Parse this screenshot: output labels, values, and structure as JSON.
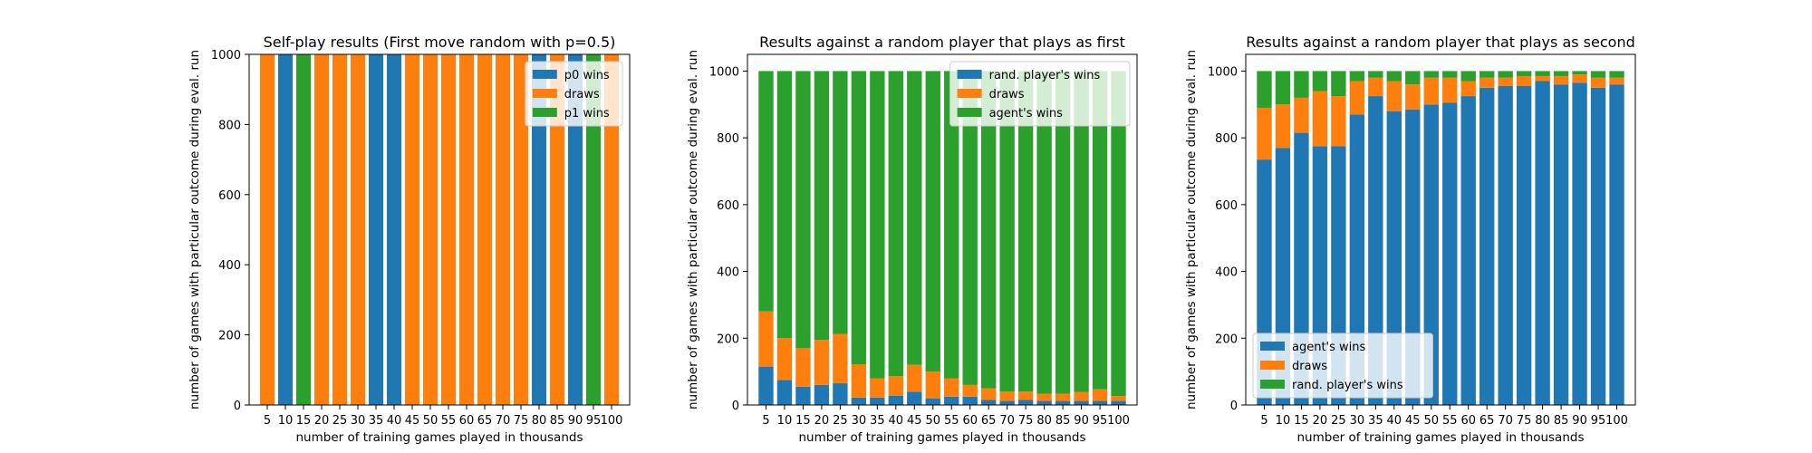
{
  "chart_data": [
    {
      "type": "bar",
      "stacked": true,
      "title": "Self-play results (First move random with p=0.5)",
      "xlabel": "number of training games played in thousands",
      "ylabel": "number of games with particular outcome during eval. run",
      "categories": [
        "5",
        "10",
        "15",
        "20",
        "25",
        "30",
        "35",
        "40",
        "45",
        "50",
        "55",
        "60",
        "65",
        "70",
        "75",
        "80",
        "85",
        "90",
        "95",
        "100"
      ],
      "ylim": [
        0,
        1000
      ],
      "yticks": [
        0,
        200,
        400,
        600,
        800,
        1000
      ],
      "legend_position": "upper right",
      "series": [
        {
          "name": "p0 wins",
          "color": "#1f77b4",
          "values": [
            0,
            1000,
            0,
            0,
            0,
            0,
            1000,
            1000,
            0,
            0,
            0,
            0,
            0,
            0,
            0,
            1000,
            0,
            1000,
            0,
            0
          ]
        },
        {
          "name": "draws",
          "color": "#ff7f0e",
          "values": [
            1000,
            0,
            0,
            1000,
            1000,
            1000,
            0,
            0,
            1000,
            1000,
            1000,
            1000,
            1000,
            1000,
            1000,
            0,
            1000,
            0,
            0,
            1000
          ]
        },
        {
          "name": "p1 wins",
          "color": "#2ca02c",
          "values": [
            0,
            0,
            1000,
            0,
            0,
            0,
            0,
            0,
            0,
            0,
            0,
            0,
            0,
            0,
            0,
            0,
            0,
            0,
            1000,
            0
          ]
        }
      ]
    },
    {
      "type": "bar",
      "stacked": true,
      "title": "Results against a random player that plays as first",
      "xlabel": "number of training games played in thousands",
      "ylabel": "number of games with particular outcome during eval. run",
      "categories": [
        "5",
        "10",
        "15",
        "20",
        "25",
        "30",
        "35",
        "40",
        "45",
        "50",
        "55",
        "60",
        "65",
        "70",
        "75",
        "80",
        "85",
        "90",
        "95",
        "100"
      ],
      "ylim": [
        0,
        1050
      ],
      "yticks": [
        0,
        200,
        400,
        600,
        800,
        1000
      ],
      "legend_position": "upper right",
      "series": [
        {
          "name": "rand. player's wins",
          "color": "#1f77b4",
          "values": [
            115,
            75,
            55,
            60,
            65,
            22,
            22,
            28,
            40,
            20,
            25,
            25,
            15,
            12,
            15,
            12,
            12,
            12,
            12,
            12
          ]
        },
        {
          "name": "draws",
          "color": "#ff7f0e",
          "values": [
            165,
            125,
            115,
            135,
            148,
            100,
            58,
            58,
            80,
            80,
            55,
            35,
            35,
            28,
            25,
            22,
            22,
            27,
            35,
            15
          ]
        },
        {
          "name": "agent's wins",
          "color": "#2ca02c",
          "values": [
            720,
            800,
            830,
            805,
            787,
            878,
            920,
            914,
            880,
            900,
            920,
            940,
            950,
            960,
            960,
            966,
            966,
            961,
            953,
            973
          ]
        }
      ]
    },
    {
      "type": "bar",
      "stacked": true,
      "title": "Results against a random player that plays as second",
      "xlabel": "number of training games played in thousands",
      "ylabel": "number of games with particular outcome during eval. run",
      "categories": [
        "5",
        "10",
        "15",
        "20",
        "25",
        "30",
        "35",
        "40",
        "45",
        "50",
        "55",
        "60",
        "65",
        "70",
        "75",
        "80",
        "85",
        "90",
        "95",
        "100"
      ],
      "ylim": [
        0,
        1050
      ],
      "yticks": [
        0,
        200,
        400,
        600,
        800,
        1000
      ],
      "legend_position": "lower left",
      "series": [
        {
          "name": "agent's wins",
          "color": "#1f77b4",
          "values": [
            735,
            770,
            815,
            775,
            775,
            870,
            925,
            880,
            885,
            900,
            905,
            925,
            950,
            955,
            955,
            970,
            960,
            965,
            950,
            960
          ]
        },
        {
          "name": "draws",
          "color": "#ff7f0e",
          "values": [
            155,
            130,
            105,
            165,
            150,
            100,
            55,
            90,
            75,
            80,
            75,
            45,
            30,
            25,
            30,
            15,
            25,
            25,
            30,
            20
          ]
        },
        {
          "name": "rand. player's wins",
          "color": "#2ca02c",
          "values": [
            110,
            100,
            80,
            60,
            75,
            30,
            20,
            30,
            40,
            20,
            20,
            30,
            20,
            20,
            15,
            15,
            15,
            10,
            20,
            20
          ]
        }
      ]
    }
  ]
}
